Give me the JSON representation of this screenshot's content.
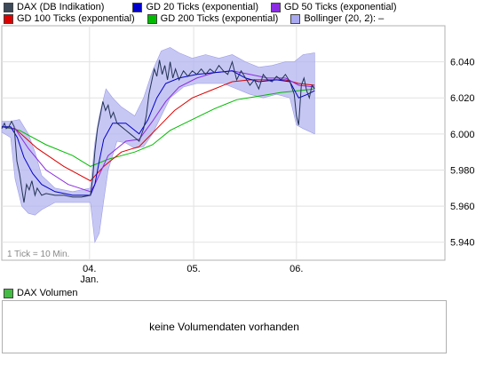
{
  "legend": [
    {
      "label": "DAX (DB Indikation)",
      "color": "#3c4a5a"
    },
    {
      "label": "GD 20 Ticks (exponential)",
      "color": "#0000cc"
    },
    {
      "label": "GD 50 Ticks (exponential)",
      "color": "#8a2be2"
    },
    {
      "label": "GD 100 Ticks (exponential)",
      "color": "#dd0000"
    },
    {
      "label": "GD 200 Ticks (exponential)",
      "color": "#00bb00"
    },
    {
      "label": "Bollinger (20, 2):  –",
      "color": "#a9a9f0"
    }
  ],
  "note": "1 Tick = 10 Min.",
  "volume": {
    "title": "DAX Volumen",
    "swatch_color": "#44bb44",
    "message": "keine Volumendaten vorhanden"
  },
  "chart_data": {
    "type": "line",
    "title": "",
    "ylim": [
      5930,
      6060
    ],
    "yticks": [
      5940,
      5960,
      5980,
      6000,
      6020,
      6040
    ],
    "ytick_labels": [
      "5.940",
      "5.960",
      "5.980",
      "6.000",
      "6.020",
      "6.040"
    ],
    "xticks": [
      {
        "t": 0.198,
        "label": "04.",
        "sub": "Jan."
      },
      {
        "t": 0.433,
        "label": "05.",
        "sub": ""
      },
      {
        "t": 0.665,
        "label": "06.",
        "sub": ""
      }
    ],
    "grid": true,
    "series": [
      {
        "name": "DAX (DB Indikation)",
        "color": "#223355",
        "width": 1,
        "points": [
          [
            0.0,
            6003
          ],
          [
            0.006,
            6006
          ],
          [
            0.01,
            6003
          ],
          [
            0.016,
            6004
          ],
          [
            0.022,
            6007
          ],
          [
            0.028,
            6004
          ],
          [
            0.034,
            5985
          ],
          [
            0.04,
            5978
          ],
          [
            0.046,
            5968
          ],
          [
            0.05,
            5962
          ],
          [
            0.056,
            5972
          ],
          [
            0.062,
            5969
          ],
          [
            0.068,
            5974
          ],
          [
            0.075,
            5966
          ],
          [
            0.08,
            5970
          ],
          [
            0.09,
            5966
          ],
          [
            0.1,
            5967
          ],
          [
            0.12,
            5966
          ],
          [
            0.14,
            5966
          ],
          [
            0.16,
            5965
          ],
          [
            0.18,
            5965
          ],
          [
            0.2,
            5966
          ],
          [
            0.205,
            5975
          ],
          [
            0.21,
            5990
          ],
          [
            0.216,
            6003
          ],
          [
            0.222,
            6010
          ],
          [
            0.228,
            6018
          ],
          [
            0.234,
            6013
          ],
          [
            0.24,
            6016
          ],
          [
            0.246,
            6009
          ],
          [
            0.252,
            6012
          ],
          [
            0.26,
            6006
          ],
          [
            0.27,
            6004
          ],
          [
            0.28,
            6002
          ],
          [
            0.29,
            6000
          ],
          [
            0.3,
            5998
          ],
          [
            0.31,
            5996
          ],
          [
            0.32,
            6003
          ],
          [
            0.326,
            6010
          ],
          [
            0.332,
            6022
          ],
          [
            0.338,
            6029
          ],
          [
            0.344,
            6036
          ],
          [
            0.35,
            6032
          ],
          [
            0.356,
            6041
          ],
          [
            0.362,
            6033
          ],
          [
            0.368,
            6038
          ],
          [
            0.374,
            6030
          ],
          [
            0.38,
            6040
          ],
          [
            0.386,
            6031
          ],
          [
            0.392,
            6036
          ],
          [
            0.4,
            6030
          ],
          [
            0.41,
            6035
          ],
          [
            0.42,
            6032
          ],
          [
            0.43,
            6035
          ],
          [
            0.44,
            6033
          ],
          [
            0.45,
            6036
          ],
          [
            0.46,
            6033
          ],
          [
            0.47,
            6036
          ],
          [
            0.48,
            6034
          ],
          [
            0.49,
            6038
          ],
          [
            0.5,
            6035
          ],
          [
            0.51,
            6033
          ],
          [
            0.52,
            6040
          ],
          [
            0.53,
            6030
          ],
          [
            0.54,
            6035
          ],
          [
            0.55,
            6031
          ],
          [
            0.56,
            6027
          ],
          [
            0.57,
            6030
          ],
          [
            0.58,
            6025
          ],
          [
            0.59,
            6033
          ],
          [
            0.6,
            6030
          ],
          [
            0.61,
            6029
          ],
          [
            0.62,
            6032
          ],
          [
            0.63,
            6030
          ],
          [
            0.64,
            6033
          ],
          [
            0.65,
            6029
          ],
          [
            0.66,
            6022
          ],
          [
            0.665,
            6010
          ],
          [
            0.67,
            6005
          ],
          [
            0.676,
            6027
          ],
          [
            0.682,
            6031
          ],
          [
            0.688,
            6024
          ],
          [
            0.694,
            6020
          ],
          [
            0.7,
            6027
          ],
          [
            0.706,
            6025
          ]
        ]
      },
      {
        "name": "GD 20 Ticks (exponential)",
        "color": "#0000cc",
        "width": 1,
        "points": [
          [
            0.0,
            6004
          ],
          [
            0.02,
            6004
          ],
          [
            0.035,
            5998
          ],
          [
            0.05,
            5987
          ],
          [
            0.07,
            5978
          ],
          [
            0.09,
            5972
          ],
          [
            0.12,
            5968
          ],
          [
            0.16,
            5966
          ],
          [
            0.2,
            5966
          ],
          [
            0.21,
            5972
          ],
          [
            0.22,
            5985
          ],
          [
            0.23,
            5997
          ],
          [
            0.25,
            6006
          ],
          [
            0.28,
            6006
          ],
          [
            0.31,
            6000
          ],
          [
            0.33,
            6008
          ],
          [
            0.35,
            6020
          ],
          [
            0.37,
            6028
          ],
          [
            0.4,
            6031
          ],
          [
            0.44,
            6033
          ],
          [
            0.48,
            6034
          ],
          [
            0.52,
            6035
          ],
          [
            0.55,
            6031
          ],
          [
            0.58,
            6029
          ],
          [
            0.62,
            6030
          ],
          [
            0.65,
            6029
          ],
          [
            0.67,
            6020
          ],
          [
            0.69,
            6022
          ],
          [
            0.706,
            6024
          ]
        ]
      },
      {
        "name": "GD 50 Ticks (exponential)",
        "color": "#8a2be2",
        "width": 1,
        "points": [
          [
            0.0,
            6004
          ],
          [
            0.03,
            6003
          ],
          [
            0.06,
            5992
          ],
          [
            0.1,
            5980
          ],
          [
            0.15,
            5972
          ],
          [
            0.2,
            5968
          ],
          [
            0.21,
            5972
          ],
          [
            0.24,
            5988
          ],
          [
            0.28,
            5996
          ],
          [
            0.31,
            5997
          ],
          [
            0.34,
            6007
          ],
          [
            0.37,
            6018
          ],
          [
            0.4,
            6026
          ],
          [
            0.44,
            6031
          ],
          [
            0.48,
            6034
          ],
          [
            0.52,
            6035
          ],
          [
            0.56,
            6033
          ],
          [
            0.6,
            6031
          ],
          [
            0.64,
            6031
          ],
          [
            0.67,
            6027
          ],
          [
            0.706,
            6026
          ]
        ]
      },
      {
        "name": "GD 100 Ticks (exponential)",
        "color": "#dd0000",
        "width": 1,
        "points": [
          [
            0.0,
            6004
          ],
          [
            0.03,
            6003
          ],
          [
            0.08,
            5992
          ],
          [
            0.14,
            5982
          ],
          [
            0.2,
            5974
          ],
          [
            0.23,
            5982
          ],
          [
            0.27,
            5990
          ],
          [
            0.31,
            5993
          ],
          [
            0.35,
            6003
          ],
          [
            0.39,
            6013
          ],
          [
            0.43,
            6020
          ],
          [
            0.47,
            6024
          ],
          [
            0.52,
            6029
          ],
          [
            0.56,
            6030
          ],
          [
            0.6,
            6030
          ],
          [
            0.64,
            6030
          ],
          [
            0.67,
            6028
          ],
          [
            0.706,
            6027
          ]
        ]
      },
      {
        "name": "GD 200 Ticks (exponential)",
        "color": "#00bb00",
        "width": 1,
        "points": [
          [
            0.0,
            6004
          ],
          [
            0.04,
            6002
          ],
          [
            0.1,
            5994
          ],
          [
            0.16,
            5988
          ],
          [
            0.2,
            5982
          ],
          [
            0.24,
            5986
          ],
          [
            0.3,
            5990
          ],
          [
            0.34,
            5994
          ],
          [
            0.38,
            6002
          ],
          [
            0.43,
            6008
          ],
          [
            0.48,
            6014
          ],
          [
            0.53,
            6019
          ],
          [
            0.58,
            6021
          ],
          [
            0.63,
            6023
          ],
          [
            0.67,
            6024
          ],
          [
            0.706,
            6025
          ]
        ]
      }
    ],
    "bollinger": {
      "upper": [
        [
          0.0,
          6007
        ],
        [
          0.02,
          6007
        ],
        [
          0.04,
          6008
        ],
        [
          0.06,
          6000
        ],
        [
          0.075,
          5990
        ],
        [
          0.09,
          5977
        ],
        [
          0.12,
          5970
        ],
        [
          0.16,
          5968
        ],
        [
          0.2,
          5970
        ],
        [
          0.21,
          5995
        ],
        [
          0.22,
          6010
        ],
        [
          0.235,
          6025
        ],
        [
          0.25,
          6020
        ],
        [
          0.27,
          6015
        ],
        [
          0.3,
          6010
        ],
        [
          0.32,
          6020
        ],
        [
          0.34,
          6035
        ],
        [
          0.36,
          6046
        ],
        [
          0.38,
          6048
        ],
        [
          0.4,
          6045
        ],
        [
          0.43,
          6042
        ],
        [
          0.46,
          6044
        ],
        [
          0.49,
          6042
        ],
        [
          0.52,
          6044
        ],
        [
          0.55,
          6040
        ],
        [
          0.58,
          6037
        ],
        [
          0.61,
          6038
        ],
        [
          0.64,
          6040
        ],
        [
          0.66,
          6040
        ],
        [
          0.68,
          6044
        ],
        [
          0.706,
          6045
        ]
      ],
      "lower": [
        [
          0.706,
          6000
        ],
        [
          0.68,
          6003
        ],
        [
          0.665,
          6005
        ],
        [
          0.65,
          6020
        ],
        [
          0.62,
          6022
        ],
        [
          0.59,
          6020
        ],
        [
          0.56,
          6022
        ],
        [
          0.53,
          6025
        ],
        [
          0.5,
          6028
        ],
        [
          0.47,
          6028
        ],
        [
          0.44,
          6028
        ],
        [
          0.41,
          6026
        ],
        [
          0.38,
          6020
        ],
        [
          0.36,
          6010
        ],
        [
          0.34,
          6000
        ],
        [
          0.32,
          5993
        ],
        [
          0.3,
          5992
        ],
        [
          0.28,
          5995
        ],
        [
          0.26,
          5996
        ],
        [
          0.24,
          5980
        ],
        [
          0.23,
          5963
        ],
        [
          0.22,
          5945
        ],
        [
          0.21,
          5940
        ],
        [
          0.2,
          5962
        ],
        [
          0.16,
          5962
        ],
        [
          0.12,
          5962
        ],
        [
          0.09,
          5958
        ],
        [
          0.075,
          5955
        ],
        [
          0.06,
          5956
        ],
        [
          0.045,
          5960
        ],
        [
          0.03,
          5975
        ],
        [
          0.02,
          5998
        ],
        [
          0.0,
          6001
        ]
      ]
    }
  }
}
